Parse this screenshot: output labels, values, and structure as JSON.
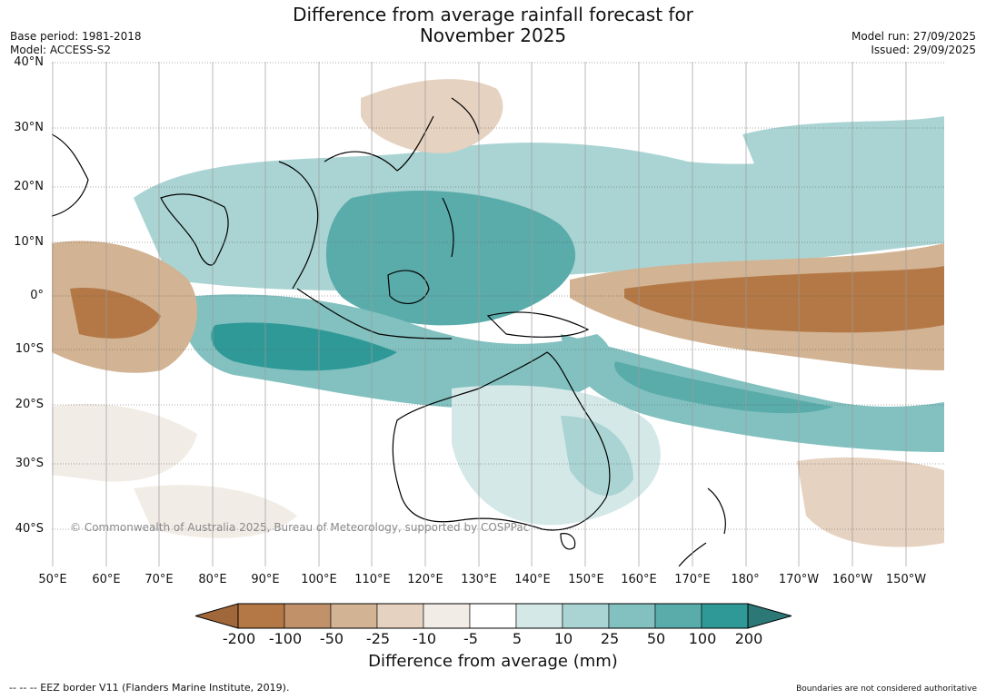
{
  "title_line1": "Difference from average rainfall forecast for",
  "title_line2": "November 2025",
  "base_period": "Base period: 1981-2018",
  "model": "Model: ACCESS-S2",
  "model_run": "Model run: 27/09/2025",
  "issued": "Issued: 29/09/2025",
  "lat_labels": [
    "40°N",
    "30°N",
    "20°N",
    "10°N",
    "0°",
    "10°S",
    "20°S",
    "30°S",
    "40°S"
  ],
  "lon_labels": [
    "50°E",
    "60°E",
    "70°E",
    "80°E",
    "90°E",
    "100°E",
    "110°E",
    "120°E",
    "130°E",
    "140°E",
    "150°E",
    "160°E",
    "170°E",
    "180°",
    "170°W",
    "160°W",
    "150°W"
  ],
  "watermark": "© Commonwealth of Australia 2025, Bureau of Meteorology, supported by COSPPac",
  "colorbar": {
    "labels": [
      "-200",
      "-100",
      "-50",
      "-25",
      "-10",
      "-5",
      "5",
      "10",
      "25",
      "50",
      "100",
      "200"
    ],
    "colors": [
      "#a0673a",
      "#b37845",
      "#c1926a",
      "#d2b393",
      "#e6d2c0",
      "#f2ece6",
      "#ffffff",
      "#d4e8e8",
      "#aad4d3",
      "#82c1c0",
      "#5aacab",
      "#2f9997",
      "#2b7877"
    ],
    "title": "Difference from average (mm)"
  },
  "footer_left": "--  --  -- EEZ border V11 (Flanders Marine Institute, 2019).",
  "footer_right": "Boundaries are not considered authoritative"
}
